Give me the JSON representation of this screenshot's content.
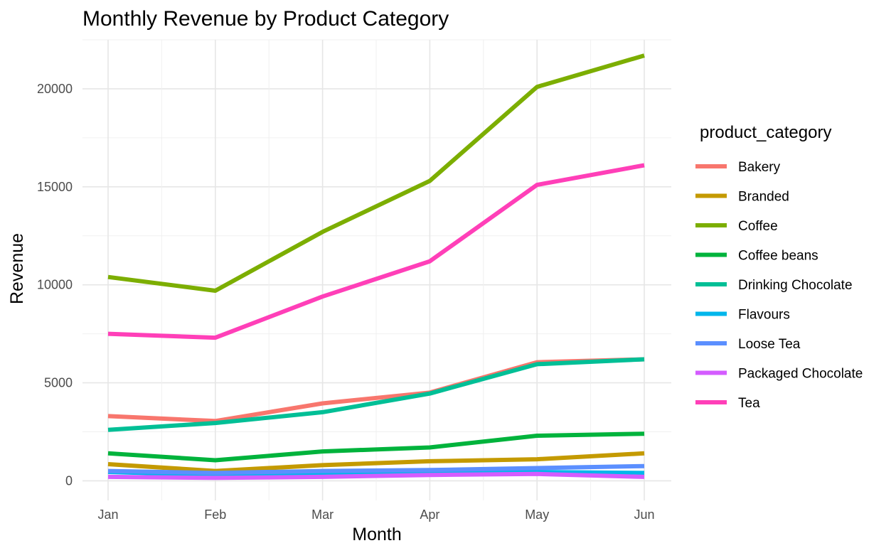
{
  "chart_data": {
    "type": "line",
    "title": "Monthly Revenue by Product Category",
    "xlabel": "Month",
    "ylabel": "Revenue",
    "categories": [
      "Jan",
      "Feb",
      "Mar",
      "Apr",
      "May",
      "Jun"
    ],
    "yticks": [
      0,
      5000,
      10000,
      15000,
      20000
    ],
    "ylim": [
      -1000,
      22500
    ],
    "grid": true,
    "legend": {
      "title": "product_category",
      "placement": "right"
    },
    "series": [
      {
        "name": "Bakery",
        "color": "#F8766D",
        "values": [
          3300,
          3050,
          3950,
          4500,
          6050,
          6200
        ]
      },
      {
        "name": "Branded",
        "color": "#C49A00",
        "values": [
          850,
          500,
          800,
          1000,
          1100,
          1400
        ]
      },
      {
        "name": "Coffee",
        "color": "#7CAE00",
        "values": [
          10400,
          9700,
          12700,
          15300,
          20100,
          21700
        ]
      },
      {
        "name": "Coffee beans",
        "color": "#00B33C",
        "values": [
          1400,
          1050,
          1500,
          1700,
          2300,
          2400
        ]
      },
      {
        "name": "Drinking Chocolate",
        "color": "#00BF96",
        "values": [
          2600,
          2950,
          3500,
          4450,
          5950,
          6200
        ]
      },
      {
        "name": "Flavours",
        "color": "#00B6EB",
        "values": [
          450,
          300,
          350,
          400,
          450,
          400
        ]
      },
      {
        "name": "Loose Tea",
        "color": "#5B8FFF",
        "values": [
          500,
          400,
          500,
          550,
          650,
          750
        ]
      },
      {
        "name": "Packaged Chocolate",
        "color": "#D45CFF",
        "values": [
          200,
          150,
          200,
          300,
          350,
          200
        ]
      },
      {
        "name": "Tea",
        "color": "#FF3FB8",
        "values": [
          7500,
          7300,
          9400,
          11200,
          15100,
          16100
        ]
      }
    ]
  }
}
